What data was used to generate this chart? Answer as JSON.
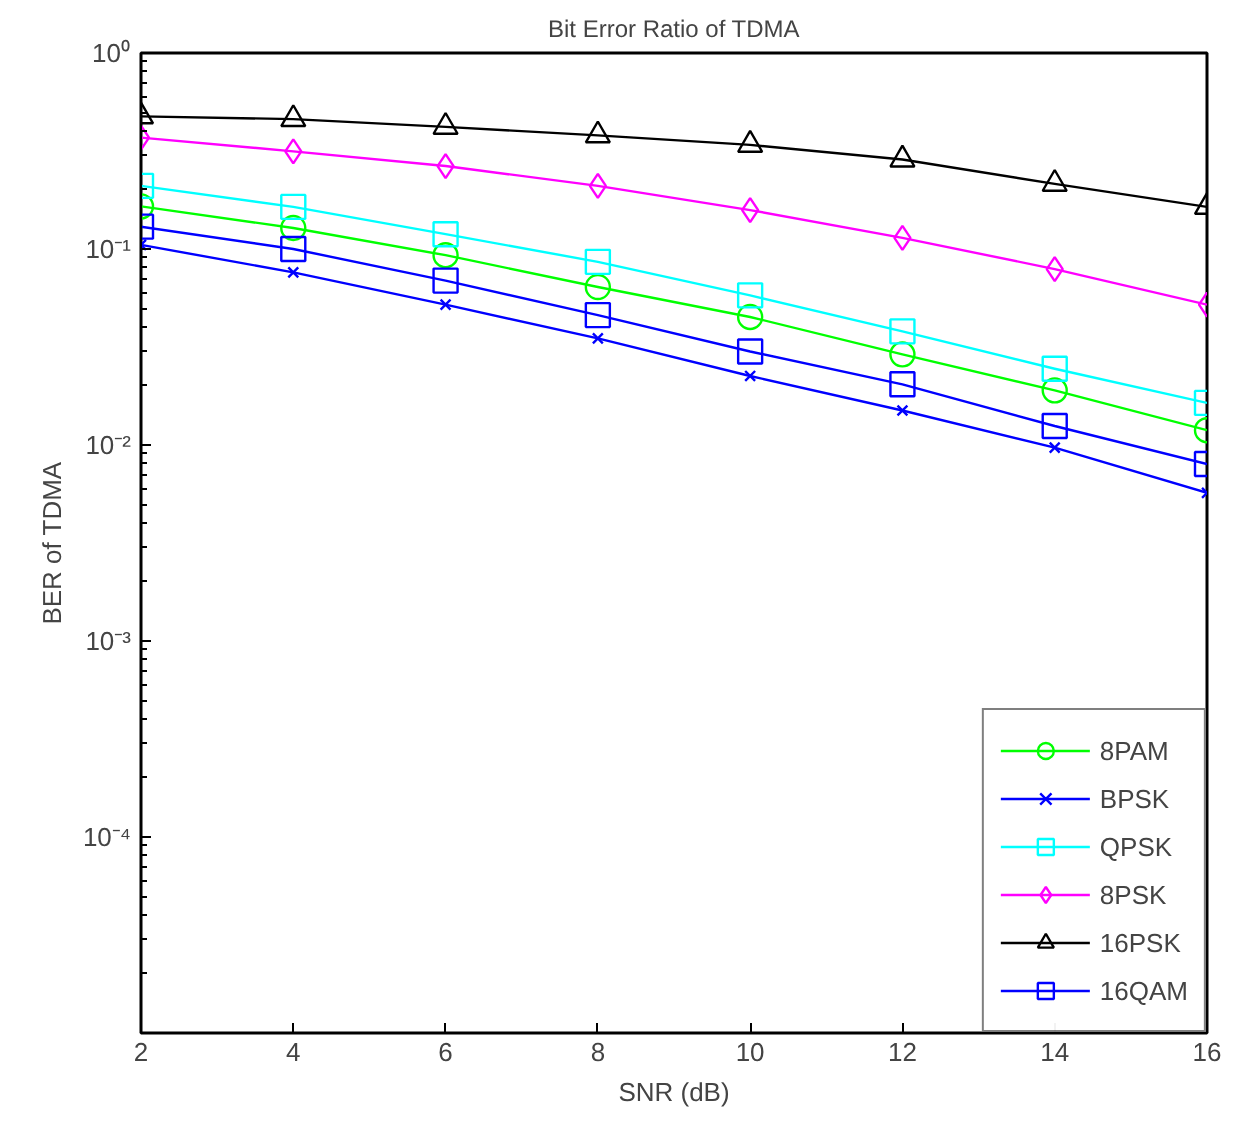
{
  "chart_data": {
    "type": "line",
    "title": "Bit Error Ratio of TDMA",
    "xlabel": "SNR (dB)",
    "ylabel": "BER of TDMA",
    "x": [
      2,
      4,
      6,
      8,
      10,
      12,
      14,
      16
    ],
    "series": [
      {
        "name": "8PAM",
        "color": "#00ff00",
        "marker": "circle",
        "values": [
          0.165,
          0.128,
          0.093,
          0.064,
          0.045,
          0.029,
          0.019,
          0.0119
        ]
      },
      {
        "name": "BPSK",
        "color": "#0000ff",
        "marker": "cross",
        "values": [
          0.105,
          0.076,
          0.052,
          0.035,
          0.0225,
          0.015,
          0.0097,
          0.0057
        ]
      },
      {
        "name": "QPSK",
        "color": "#00ffff",
        "marker": "square",
        "values": [
          0.21,
          0.164,
          0.119,
          0.086,
          0.058,
          0.038,
          0.0245,
          0.0164
        ]
      },
      {
        "name": "8PSK",
        "color": "#ff00ff",
        "marker": "diamond",
        "values": [
          0.37,
          0.315,
          0.265,
          0.21,
          0.158,
          0.114,
          0.079,
          0.052
        ]
      },
      {
        "name": "16PSK",
        "color": "#000000",
        "marker": "triangle",
        "values": [
          0.475,
          0.46,
          0.42,
          0.38,
          0.34,
          0.286,
          0.215,
          0.164
        ]
      },
      {
        "name": "16QAM",
        "color": "#0000ff",
        "marker": "square",
        "values": [
          0.13,
          0.1,
          0.069,
          0.046,
          0.03,
          0.0204,
          0.0125,
          0.008
        ]
      }
    ],
    "log": "y",
    "xlim": [
      2,
      16
    ],
    "ylim": [
      1e-05,
      1
    ],
    "xticks": [
      2,
      4,
      6,
      8,
      10,
      12,
      14,
      16
    ],
    "yticks": [
      {
        "value": 1,
        "label": "10⁰"
      },
      {
        "value": 0.1,
        "label": "10⁻¹"
      },
      {
        "value": 0.01,
        "label": "10⁻²"
      },
      {
        "value": 0.001,
        "label": "10⁻³"
      },
      {
        "value": 0.0001,
        "label": "10⁻⁴"
      }
    ],
    "grid": false,
    "legend": "bottom right",
    "line_style": "solid"
  }
}
